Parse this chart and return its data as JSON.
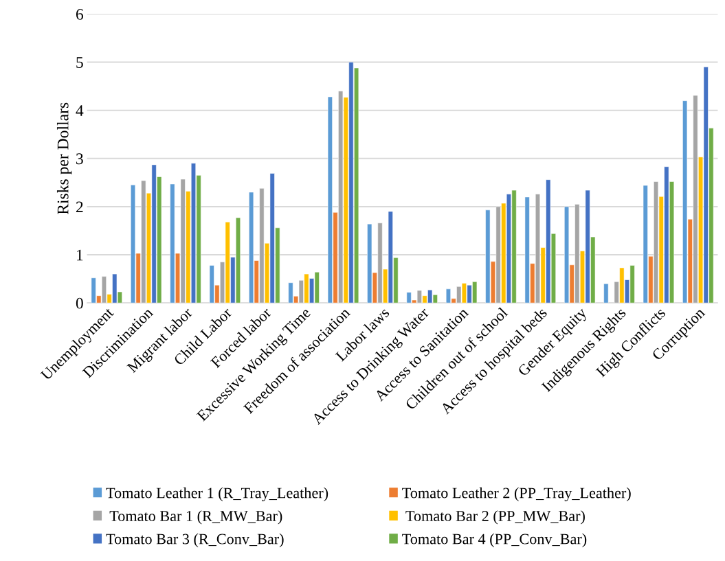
{
  "chart_data": {
    "type": "bar",
    "ylabel": "Risks per Dollars",
    "categories": [
      "Unemployment",
      "Discrimination",
      "Migrant labor",
      "Child Labor",
      "Forced labor",
      "Excessive Working Time",
      "Freedom of association",
      "Labor laws",
      "Access to Drinking Water",
      "Access to Sanitation",
      "Children out of school",
      "Access to hospital beds",
      "Gender Equity",
      "Indigenous Rights",
      "High Conflicts",
      "Corruption"
    ],
    "series": [
      {
        "name": "Tomato Leather 1 (R_Tray_Leather)",
        "color": "#5b9bd5",
        "values": [
          0.52,
          2.45,
          2.47,
          0.78,
          2.3,
          0.42,
          4.28,
          1.64,
          0.22,
          0.29,
          1.93,
          2.2,
          2.0,
          0.4,
          2.44,
          4.2
        ]
      },
      {
        "name": "Tomato Leather 2 (PP_Tray_Leather)",
        "color": "#ed7d31",
        "values": [
          0.15,
          1.03,
          1.03,
          0.37,
          0.88,
          0.14,
          1.88,
          0.63,
          0.06,
          0.09,
          0.86,
          0.82,
          0.79,
          null,
          0.97,
          1.74
        ]
      },
      {
        "name": " Tomato Bar 1 (R_MW_Bar)",
        "color": "#a5a5a5",
        "values": [
          0.55,
          2.54,
          2.57,
          0.85,
          2.38,
          0.47,
          4.4,
          1.66,
          0.26,
          0.34,
          2.0,
          2.26,
          2.05,
          0.44,
          2.52,
          4.31
        ]
      },
      {
        "name": " Tomato Bar 2 (PP_MW_Bar)",
        "color": "#ffc000",
        "values": [
          0.18,
          2.28,
          2.32,
          1.68,
          1.24,
          0.6,
          4.27,
          0.7,
          0.15,
          0.41,
          2.07,
          1.15,
          1.08,
          0.73,
          2.21,
          3.03
        ]
      },
      {
        "name": "Tomato Bar 3 (R_Conv_Bar)",
        "color": "#4472c4",
        "values": [
          0.6,
          2.87,
          2.9,
          0.95,
          2.69,
          0.51,
          5.0,
          1.9,
          0.27,
          0.37,
          2.26,
          2.56,
          2.34,
          0.48,
          2.83,
          4.9
        ]
      },
      {
        "name": "Tomato Bar 4 (PP_Conv_Bar)",
        "color": "#70ad47",
        "values": [
          0.23,
          2.62,
          2.65,
          1.77,
          1.56,
          0.64,
          4.88,
          0.94,
          0.17,
          0.44,
          2.34,
          1.44,
          1.37,
          0.78,
          2.52,
          3.63
        ]
      }
    ],
    "ylim": [
      0,
      6
    ],
    "yticks": [
      0,
      1,
      2,
      3,
      4,
      5,
      6
    ],
    "grid": "y",
    "legend": "bottom"
  }
}
